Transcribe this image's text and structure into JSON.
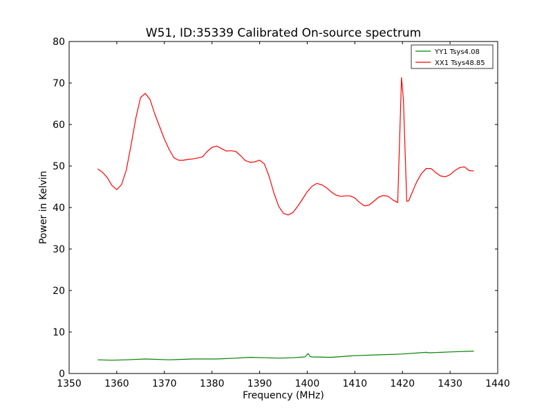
{
  "chart_data": {
    "type": "line",
    "title": "W51, ID:35339 Calibrated On-source spectrum",
    "xlabel": "Frequency (MHz)",
    "ylabel": "Power in Kelvin",
    "xlim": [
      1350,
      1440
    ],
    "ylim": [
      0,
      80
    ],
    "xticks": [
      1350,
      1360,
      1370,
      1380,
      1390,
      1400,
      1410,
      1420,
      1430,
      1440
    ],
    "yticks": [
      0,
      10,
      20,
      30,
      40,
      50,
      60,
      70,
      80
    ],
    "grid": false,
    "legend_position": "top-right",
    "series": [
      {
        "name": "YY1 Tsys4.08",
        "color": "#008000",
        "x": [
          1356,
          1359,
          1362,
          1366,
          1371,
          1376,
          1381,
          1385,
          1388,
          1391,
          1394,
          1397,
          1399.5,
          1400.2,
          1400.6,
          1401,
          1405,
          1410,
          1415,
          1420,
          1425,
          1425.5,
          1426,
          1430,
          1435
        ],
        "y": [
          3.3,
          3.2,
          3.3,
          3.5,
          3.3,
          3.5,
          3.5,
          3.7,
          3.9,
          3.8,
          3.7,
          3.8,
          4.0,
          4.8,
          4.1,
          4.0,
          3.9,
          4.3,
          4.5,
          4.7,
          5.1,
          5.0,
          5.0,
          5.2,
          5.4
        ]
      },
      {
        "name": "XX1 Tsys48.85",
        "color": "#ff0000",
        "x": [
          1356,
          1357,
          1358,
          1359,
          1360,
          1361,
          1362,
          1363,
          1364,
          1365,
          1366,
          1367,
          1368,
          1369,
          1370,
          1371,
          1372,
          1373,
          1374,
          1375,
          1376,
          1378,
          1379,
          1380,
          1381,
          1382,
          1383,
          1384,
          1385,
          1386,
          1387,
          1388,
          1389,
          1390,
          1391,
          1392,
          1393,
          1394,
          1395,
          1396,
          1397,
          1398,
          1399,
          1400,
          1401,
          1402,
          1403,
          1404,
          1405,
          1406,
          1407,
          1408,
          1409,
          1410,
          1411,
          1412,
          1413,
          1414,
          1415,
          1416,
          1417,
          1418,
          1419,
          1419.8,
          1420.2,
          1420.9,
          1421.3,
          1422,
          1423,
          1424,
          1425,
          1426,
          1427,
          1428,
          1429,
          1430,
          1431,
          1432,
          1433,
          1434,
          1435
        ],
        "y": [
          49.3,
          48.5,
          47.2,
          45.3,
          44.3,
          45.5,
          49,
          55,
          61.5,
          66.5,
          67.5,
          66,
          62.5,
          59.5,
          56.5,
          54,
          52,
          51.4,
          51.4,
          51.6,
          51.7,
          52.2,
          53.5,
          54.5,
          54.8,
          54.2,
          53.6,
          53.7,
          53.5,
          52.5,
          51.3,
          50.9,
          51.0,
          51.4,
          50.5,
          47.5,
          43.5,
          40.3,
          38.6,
          38.2,
          38.8,
          40.3,
          42.0,
          43.8,
          45.1,
          45.8,
          45.5,
          44.8,
          43.8,
          43.0,
          42.7,
          42.8,
          42.8,
          42.3,
          41.2,
          40.4,
          40.6,
          41.5,
          42.5,
          42.9,
          42.7,
          41.8,
          41.2,
          71.3,
          66.0,
          41.5,
          41.6,
          43.5,
          46.2,
          48.2,
          49.4,
          49.4,
          48.4,
          47.6,
          47.4,
          47.9,
          48.9,
          49.6,
          49.8,
          48.9,
          48.8
        ]
      }
    ]
  }
}
